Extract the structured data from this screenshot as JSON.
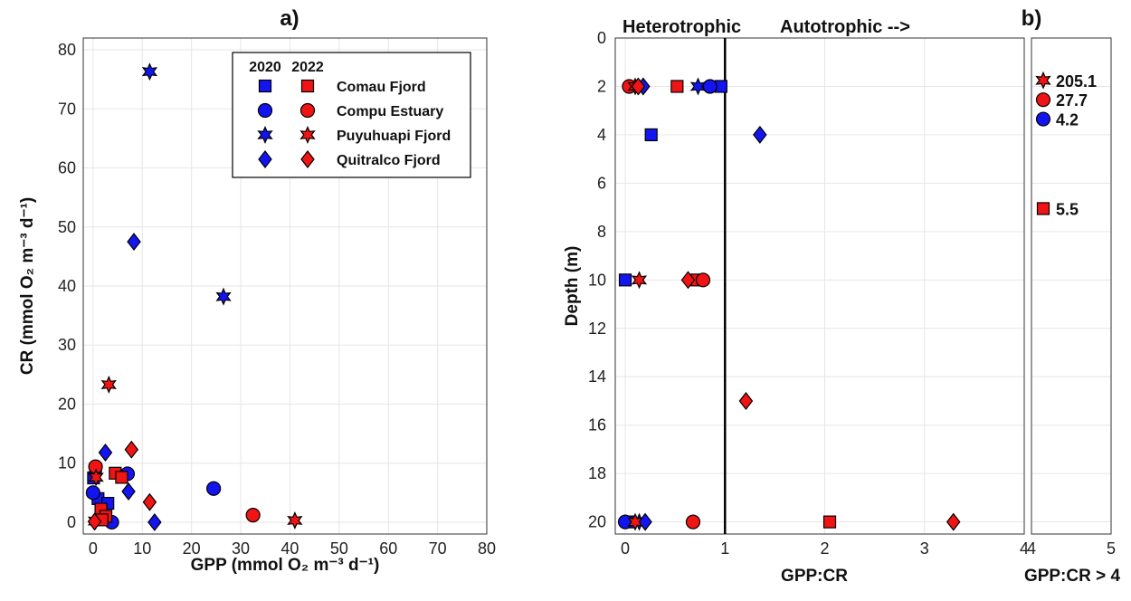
{
  "colors": {
    "y2020": "#1414f0",
    "y2022": "#f01414",
    "edge": "#000000"
  },
  "chart_data": [
    {
      "type": "scatter",
      "panel_label": "a)",
      "xlabel": "GPP (mmol O₂ m⁻³ d⁻¹)",
      "ylabel": "CR (mmol O₂ m⁻³ d⁻¹)",
      "xlim": [
        0,
        80
      ],
      "ylim": [
        0,
        80
      ],
      "xticks": [
        "0",
        "10",
        "20",
        "30",
        "40",
        "50",
        "60",
        "70",
        "80"
      ],
      "yticks": [
        "0",
        "10",
        "20",
        "30",
        "40",
        "50",
        "60",
        "70",
        "80"
      ],
      "grid": true,
      "legend": {
        "placement": "top-right",
        "headers": [
          "2020",
          "2022"
        ],
        "entries": [
          {
            "label": "Comau Fjord",
            "marker": "square"
          },
          {
            "label": "Compu Estuary",
            "marker": "circle"
          },
          {
            "label": "Puyuhuapi Fjord",
            "marker": "star"
          },
          {
            "label": "Quitralco Fjord",
            "marker": "diamond"
          }
        ]
      },
      "series": [
        {
          "name": "Comau Fjord",
          "year": "2020",
          "marker": "square",
          "points": [
            [
              0.1,
              7.5
            ],
            [
              0.5,
              9.0
            ],
            [
              1.0,
              4.0
            ],
            [
              3.0,
              3.2
            ]
          ]
        },
        {
          "name": "Compu Estuary",
          "year": "2020",
          "marker": "circle",
          "points": [
            [
              0,
              5.0
            ],
            [
              7,
              8.2
            ],
            [
              24.5,
              5.7
            ],
            [
              3.8,
              0
            ]
          ]
        },
        {
          "name": "Puyuhuapi Fjord",
          "year": "2020",
          "marker": "star",
          "points": [
            [
              11.5,
              76.3
            ],
            [
              26.5,
              38.2
            ],
            [
              0.5,
              0.2
            ]
          ]
        },
        {
          "name": "Quitralco Fjord",
          "year": "2020",
          "marker": "diamond",
          "points": [
            [
              8.3,
              47.5
            ],
            [
              2.5,
              11.8
            ],
            [
              7.2,
              5.2
            ],
            [
              12.5,
              0
            ]
          ]
        },
        {
          "name": "Comau Fjord",
          "year": "2022",
          "marker": "square",
          "points": [
            [
              4.5,
              8.3
            ],
            [
              5.8,
              7.6
            ],
            [
              1.6,
              2.2
            ],
            [
              2.6,
              1.0
            ],
            [
              1.8,
              0.4
            ]
          ]
        },
        {
          "name": "Compu Estuary",
          "year": "2022",
          "marker": "circle",
          "points": [
            [
              0.5,
              9.4
            ],
            [
              32.5,
              1.2
            ]
          ]
        },
        {
          "name": "Puyuhuapi Fjord",
          "year": "2022",
          "marker": "star",
          "points": [
            [
              3.2,
              23.3
            ],
            [
              0.6,
              7.6
            ],
            [
              41,
              0.3
            ]
          ]
        },
        {
          "name": "Quitralco Fjord",
          "year": "2022",
          "marker": "diamond",
          "points": [
            [
              7.8,
              12.3
            ],
            [
              11.5,
              3.4
            ],
            [
              0.3,
              0.1
            ]
          ]
        }
      ]
    },
    {
      "type": "scatter",
      "panel_label": "",
      "xlabel": "GPP:CR",
      "ylabel": "Depth (m)",
      "xlim": [
        -0.1,
        4
      ],
      "ylim": [
        0,
        20.5
      ],
      "y_reversed": true,
      "xticks": [
        "0",
        "1",
        "2",
        "3",
        "4"
      ],
      "yticks": [
        "0",
        "2",
        "4",
        "6",
        "8",
        "10",
        "12",
        "14",
        "16",
        "18",
        "20"
      ],
      "grid": true,
      "reference_line_x": 1,
      "annotations": [
        "Heterotrophic",
        "Autotrophic -->"
      ],
      "series": [
        {
          "name": "Comau Fjord",
          "year": "2020",
          "marker": "square",
          "points": [
            [
              0.96,
              2
            ],
            [
              0.26,
              4
            ],
            [
              0.0,
              10
            ],
            [
              0.05,
              20
            ]
          ]
        },
        {
          "name": "Compu Estuary",
          "year": "2020",
          "marker": "circle",
          "points": [
            [
              0.85,
              2
            ],
            [
              0.0,
              20
            ]
          ]
        },
        {
          "name": "Puyuhuapi Fjord",
          "year": "2020",
          "marker": "star",
          "points": [
            [
              0.73,
              2
            ],
            [
              0.14,
              20
            ]
          ]
        },
        {
          "name": "Quitralco Fjord",
          "year": "2020",
          "marker": "diamond",
          "points": [
            [
              0.18,
              2
            ],
            [
              1.35,
              4
            ],
            [
              0.2,
              20
            ]
          ]
        },
        {
          "name": "Comau Fjord",
          "year": "2022",
          "marker": "square",
          "points": [
            [
              0.52,
              2
            ],
            [
              0.72,
              10
            ],
            [
              2.05,
              20
            ]
          ]
        },
        {
          "name": "Compu Estuary",
          "year": "2022",
          "marker": "circle",
          "points": [
            [
              0.04,
              2
            ],
            [
              0.78,
              10
            ],
            [
              0.68,
              20
            ]
          ]
        },
        {
          "name": "Puyuhuapi Fjord",
          "year": "2022",
          "marker": "star",
          "points": [
            [
              0.1,
              2
            ],
            [
              0.14,
              10
            ],
            [
              0.1,
              20
            ]
          ]
        },
        {
          "name": "Quitralco Fjord",
          "year": "2022",
          "marker": "diamond",
          "points": [
            [
              0.13,
              2
            ],
            [
              0.63,
              10
            ],
            [
              1.21,
              15
            ],
            [
              3.29,
              20
            ]
          ]
        }
      ]
    },
    {
      "type": "scatter",
      "panel_label": "b)",
      "xlabel": "GPP:CR > 4",
      "xlim": [
        4,
        5
      ],
      "xticks": [
        "4",
        "5"
      ],
      "ylim": [
        0,
        20.5
      ],
      "y_reversed": true,
      "points": [
        {
          "marker": "star",
          "year": "2022",
          "label": "205.1",
          "depth": 1.75
        },
        {
          "marker": "circle",
          "year": "2022",
          "label": "27.7",
          "depth": 2.55
        },
        {
          "marker": "circle",
          "year": "2020",
          "label": "4.2",
          "depth": 3.35
        },
        {
          "marker": "square",
          "year": "2022",
          "label": "5.5",
          "depth": 7.05
        }
      ]
    }
  ]
}
